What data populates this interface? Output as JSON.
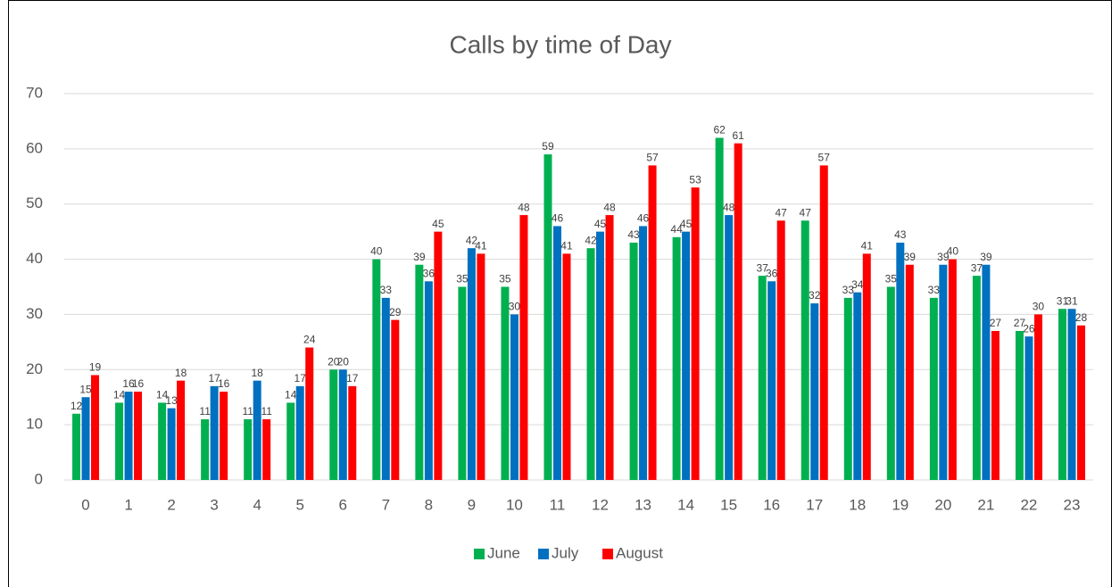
{
  "chart_data": {
    "type": "bar",
    "title": "Calls by time of Day",
    "categories": [
      "0",
      "1",
      "2",
      "3",
      "4",
      "5",
      "6",
      "7",
      "8",
      "9",
      "10",
      "11",
      "12",
      "13",
      "14",
      "15",
      "16",
      "17",
      "18",
      "19",
      "20",
      "21",
      "22",
      "23"
    ],
    "series": [
      {
        "name": "June",
        "color": "#00b050",
        "values": [
          12,
          14,
          14,
          11,
          11,
          14,
          20,
          40,
          39,
          35,
          35,
          59,
          42,
          43,
          44,
          62,
          37,
          47,
          33,
          35,
          33,
          37,
          27,
          31
        ]
      },
      {
        "name": "July",
        "color": "#0070c0",
        "values": [
          15,
          16,
          13,
          17,
          18,
          17,
          20,
          33,
          36,
          42,
          30,
          46,
          45,
          46,
          45,
          48,
          36,
          32,
          34,
          43,
          39,
          39,
          26,
          31
        ]
      },
      {
        "name": "August",
        "color": "#ff0000",
        "values": [
          19,
          16,
          18,
          16,
          11,
          24,
          17,
          29,
          45,
          41,
          48,
          41,
          48,
          57,
          53,
          61,
          47,
          57,
          41,
          39,
          40,
          27,
          30,
          28
        ]
      }
    ],
    "ylim": [
      0,
      70
    ],
    "yticks": [
      0,
      10,
      20,
      30,
      40,
      50,
      60,
      70
    ],
    "grid": true,
    "legend": "bottom"
  }
}
